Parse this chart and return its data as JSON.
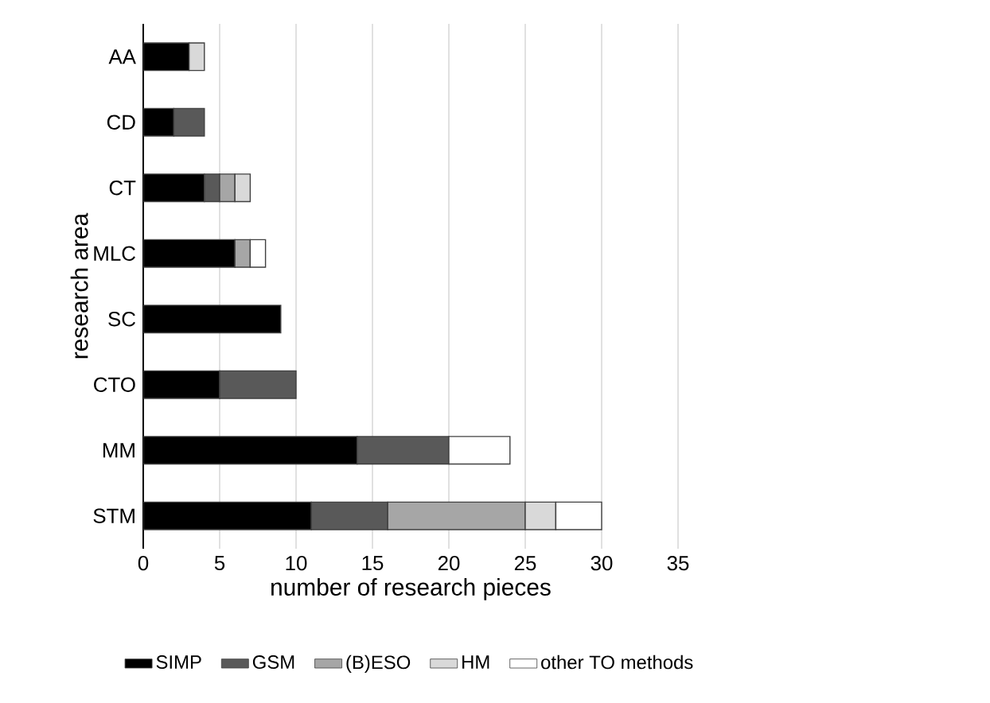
{
  "chart_data": {
    "type": "bar",
    "orientation": "horizontal",
    "stacked": true,
    "categories": [
      "AA",
      "CD",
      "CT",
      "MLC",
      "SC",
      "CTO",
      "MM",
      "STM"
    ],
    "series": [
      {
        "name": "SIMP",
        "color": "#000000",
        "values": [
          3,
          2,
          4,
          6,
          9,
          5,
          14,
          11
        ]
      },
      {
        "name": "GSM",
        "color": "#595959",
        "values": [
          null,
          2,
          1,
          null,
          null,
          5,
          6,
          5
        ]
      },
      {
        "name": "(B)ESO",
        "color": "#a6a6a6",
        "values": [
          null,
          null,
          1,
          1,
          null,
          null,
          null,
          9
        ]
      },
      {
        "name": "HM",
        "color": "#d9d9d9",
        "values": [
          1,
          null,
          1,
          null,
          null,
          null,
          null,
          2
        ]
      },
      {
        "name": "other TO methods",
        "color": "#ffffff",
        "values": [
          null,
          null,
          null,
          1,
          null,
          null,
          4,
          3
        ]
      }
    ],
    "xlim": [
      0,
      35
    ],
    "xticks": [
      0,
      5,
      10,
      15,
      20,
      25,
      30,
      35
    ],
    "xlabel": "number of research pieces",
    "ylabel": "research area",
    "grid": "x",
    "legend": "bottom"
  }
}
